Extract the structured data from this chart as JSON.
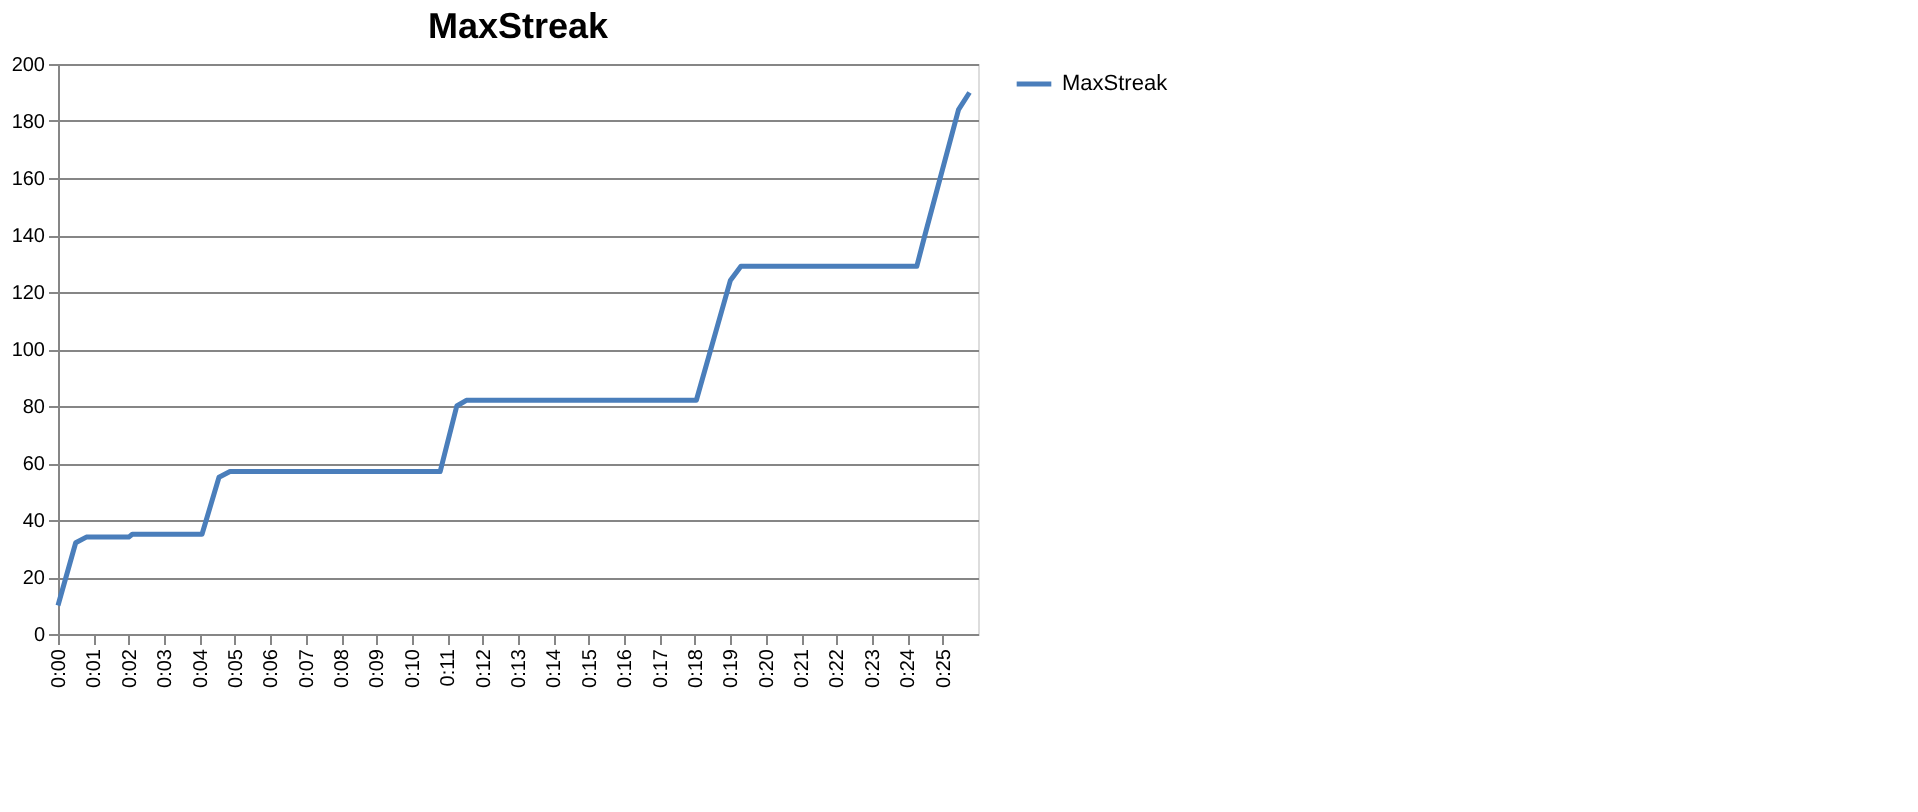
{
  "chart_data": {
    "type": "line",
    "title": "MaxStreak",
    "x": [
      0,
      0.5,
      0.8,
      2.0,
      2.1,
      4.07,
      4.55,
      4.86,
      10.8,
      11.27,
      11.54,
      18.04,
      19.0,
      19.3,
      24.27,
      24.5,
      25.45,
      25.76
    ],
    "series": [
      {
        "name": "MaxStreak",
        "color": "#4a7ebb",
        "values": [
          10,
          32,
          34,
          34,
          35,
          35,
          55,
          57,
          57,
          80,
          82,
          82,
          124,
          129,
          129,
          140,
          184,
          190
        ]
      }
    ],
    "xlim": [
      0,
      26
    ],
    "xticks": [
      {
        "value": 0,
        "label": "0:00"
      },
      {
        "value": 1,
        "label": "0:01"
      },
      {
        "value": 2,
        "label": "0:02"
      },
      {
        "value": 3,
        "label": "0:03"
      },
      {
        "value": 4,
        "label": "0:04"
      },
      {
        "value": 5,
        "label": "0:05"
      },
      {
        "value": 6,
        "label": "0:06"
      },
      {
        "value": 7,
        "label": "0:07"
      },
      {
        "value": 8,
        "label": "0:08"
      },
      {
        "value": 9,
        "label": "0:09"
      },
      {
        "value": 10,
        "label": "0:10"
      },
      {
        "value": 11,
        "label": "0:11"
      },
      {
        "value": 12,
        "label": "0:12"
      },
      {
        "value": 13,
        "label": "0:13"
      },
      {
        "value": 14,
        "label": "0:14"
      },
      {
        "value": 15,
        "label": "0:15"
      },
      {
        "value": 16,
        "label": "0:16"
      },
      {
        "value": 17,
        "label": "0:17"
      },
      {
        "value": 18,
        "label": "0:18"
      },
      {
        "value": 19,
        "label": "0:19"
      },
      {
        "value": 20,
        "label": "0:20"
      },
      {
        "value": 21,
        "label": "0:21"
      },
      {
        "value": 22,
        "label": "0:22"
      },
      {
        "value": 23,
        "label": "0:23"
      },
      {
        "value": 24,
        "label": "0:24"
      },
      {
        "value": 25,
        "label": "0:25"
      }
    ],
    "ylim": [
      0,
      200
    ],
    "yticks": [
      0,
      20,
      40,
      60,
      80,
      100,
      120,
      140,
      160,
      180,
      200
    ],
    "grid": "y",
    "legend": "right",
    "marker": "none",
    "line_style": "solid"
  }
}
